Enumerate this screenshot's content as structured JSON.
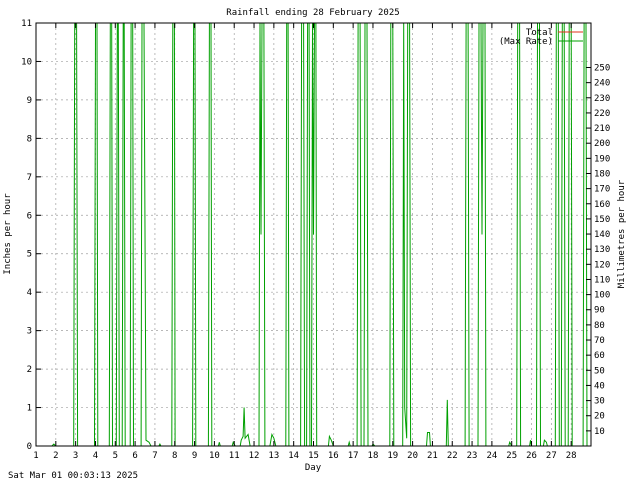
{
  "chart_data": {
    "type": "line",
    "title": "Rainfall ending 28 February 2025",
    "xlabel": "Day",
    "ylabel_left": "Inches per hour",
    "ylabel_right": "Millimetres per hour",
    "footer": "Sat Mar 01 00:03:13 2025",
    "xlim": [
      1,
      29
    ],
    "ylim_left": [
      0,
      11
    ],
    "ylim_right_mm": [
      0,
      279.4
    ],
    "x_ticks": [
      1,
      2,
      3,
      4,
      5,
      6,
      7,
      8,
      9,
      10,
      11,
      12,
      13,
      14,
      15,
      16,
      17,
      18,
      19,
      20,
      21,
      22,
      23,
      24,
      25,
      26,
      27,
      28
    ],
    "x_tick_labels": [
      "1",
      "2",
      "3",
      "4",
      "5",
      "6",
      "7",
      "8",
      "9",
      "10",
      "11",
      "12",
      "13",
      "14",
      "15",
      "16",
      "17",
      "18",
      "19",
      "20",
      "21",
      "22",
      "23",
      "24",
      "25",
      "26",
      "27",
      "28"
    ],
    "y_ticks_left": [
      0,
      1,
      2,
      3,
      4,
      5,
      6,
      7,
      8,
      9,
      10,
      11
    ],
    "y_tick_labels_left": [
      "0",
      "1",
      "2",
      "3",
      "4",
      "5",
      "6",
      "7",
      "8",
      "9",
      "10",
      "11"
    ],
    "y_ticks_right": [
      10,
      20,
      30,
      40,
      50,
      60,
      70,
      80,
      90,
      100,
      110,
      120,
      130,
      140,
      150,
      160,
      170,
      180,
      190,
      200,
      210,
      220,
      230,
      240,
      250
    ],
    "y_tick_labels_right": [
      "10",
      "20",
      "30",
      "40",
      "50",
      "60",
      "70",
      "80",
      "90",
      "100",
      "110",
      "120",
      "130",
      "140",
      "150",
      "160",
      "170",
      "180",
      "190",
      "200",
      "210",
      "220",
      "230",
      "240",
      "250"
    ],
    "grid": true,
    "legend_position": "top-right",
    "series": [
      {
        "name": "Total",
        "color": "#e0301e",
        "points": []
      },
      {
        "name": "(Max Rate)",
        "color": "#00a000",
        "points": [
          [
            1.0,
            0
          ],
          [
            1.8,
            0
          ],
          [
            1.9,
            0.05
          ],
          [
            2.0,
            0
          ],
          [
            2.9,
            0
          ],
          [
            2.95,
            11
          ],
          [
            3.05,
            11
          ],
          [
            3.1,
            0
          ],
          [
            3.95,
            0
          ],
          [
            4.0,
            11
          ],
          [
            4.08,
            11
          ],
          [
            4.12,
            0
          ],
          [
            4.7,
            0
          ],
          [
            4.75,
            11
          ],
          [
            4.82,
            11
          ],
          [
            4.86,
            0
          ],
          [
            5.05,
            0
          ],
          [
            5.1,
            11
          ],
          [
            5.15,
            11
          ],
          [
            5.2,
            0
          ],
          [
            5.35,
            0
          ],
          [
            5.4,
            11
          ],
          [
            5.45,
            11
          ],
          [
            5.5,
            0
          ],
          [
            5.75,
            0
          ],
          [
            5.8,
            11
          ],
          [
            5.88,
            11
          ],
          [
            5.92,
            0
          ],
          [
            6.3,
            0
          ],
          [
            6.35,
            11
          ],
          [
            6.45,
            11
          ],
          [
            6.55,
            0.15
          ],
          [
            6.7,
            0.1
          ],
          [
            6.8,
            0
          ],
          [
            7.2,
            0
          ],
          [
            7.25,
            0.05
          ],
          [
            7.3,
            0
          ],
          [
            7.85,
            0
          ],
          [
            7.9,
            11
          ],
          [
            7.98,
            11
          ],
          [
            8.02,
            0
          ],
          [
            8.9,
            0
          ],
          [
            8.95,
            11
          ],
          [
            9.02,
            11
          ],
          [
            9.06,
            0
          ],
          [
            9.7,
            0
          ],
          [
            9.75,
            11
          ],
          [
            9.83,
            11
          ],
          [
            9.87,
            0
          ],
          [
            10.2,
            0
          ],
          [
            10.25,
            0.1
          ],
          [
            10.3,
            0
          ],
          [
            10.9,
            0
          ],
          [
            10.95,
            0.1
          ],
          [
            11.05,
            0
          ],
          [
            11.3,
            0
          ],
          [
            11.35,
            0.15
          ],
          [
            11.45,
            0.25
          ],
          [
            11.5,
            1.0
          ],
          [
            11.55,
            0.2
          ],
          [
            11.7,
            0.3
          ],
          [
            11.8,
            0
          ],
          [
            12.25,
            0
          ],
          [
            12.3,
            11
          ],
          [
            12.35,
            5.5
          ],
          [
            12.4,
            11
          ],
          [
            12.5,
            11
          ],
          [
            12.55,
            0
          ],
          [
            12.8,
            0
          ],
          [
            12.9,
            0.3
          ],
          [
            13.0,
            0.2
          ],
          [
            13.1,
            0
          ],
          [
            13.6,
            0
          ],
          [
            13.65,
            11
          ],
          [
            13.72,
            11
          ],
          [
            13.76,
            0
          ],
          [
            14.35,
            0
          ],
          [
            14.4,
            11
          ],
          [
            14.5,
            11
          ],
          [
            14.55,
            0
          ],
          [
            14.65,
            0
          ],
          [
            14.7,
            11
          ],
          [
            14.78,
            11
          ],
          [
            14.82,
            0
          ],
          [
            14.9,
            0
          ],
          [
            14.95,
            11
          ],
          [
            15.0,
            5.5
          ],
          [
            15.05,
            11
          ],
          [
            15.12,
            11
          ],
          [
            15.16,
            0
          ],
          [
            15.75,
            0
          ],
          [
            15.8,
            0.25
          ],
          [
            15.9,
            0.15
          ],
          [
            16.0,
            0
          ],
          [
            16.75,
            0
          ],
          [
            16.8,
            0.1
          ],
          [
            16.85,
            0
          ],
          [
            17.2,
            0
          ],
          [
            17.25,
            11
          ],
          [
            17.35,
            11
          ],
          [
            17.4,
            0
          ],
          [
            17.55,
            0
          ],
          [
            17.6,
            11
          ],
          [
            17.7,
            11
          ],
          [
            17.75,
            0
          ],
          [
            17.95,
            0
          ],
          [
            18.0,
            0.05
          ],
          [
            18.1,
            0
          ],
          [
            18.85,
            0
          ],
          [
            18.9,
            11
          ],
          [
            19.0,
            11
          ],
          [
            19.05,
            0
          ],
          [
            19.5,
            0
          ],
          [
            19.55,
            11
          ],
          [
            19.6,
            1.0
          ],
          [
            19.7,
            0.2
          ],
          [
            19.75,
            11
          ],
          [
            19.85,
            11
          ],
          [
            19.9,
            0
          ],
          [
            20.7,
            0
          ],
          [
            20.75,
            0.35
          ],
          [
            20.85,
            0.35
          ],
          [
            20.9,
            0
          ],
          [
            21.7,
            0
          ],
          [
            21.75,
            1.2
          ],
          [
            21.8,
            0
          ],
          [
            22.65,
            0
          ],
          [
            22.7,
            11
          ],
          [
            22.8,
            11
          ],
          [
            22.85,
            0
          ],
          [
            23.3,
            0
          ],
          [
            23.35,
            11
          ],
          [
            23.45,
            11
          ],
          [
            23.5,
            5.5
          ],
          [
            23.55,
            11
          ],
          [
            23.65,
            11
          ],
          [
            23.7,
            0
          ],
          [
            24.85,
            0
          ],
          [
            24.9,
            0.1
          ],
          [
            25.0,
            0
          ],
          [
            25.25,
            0
          ],
          [
            25.3,
            11
          ],
          [
            25.4,
            11
          ],
          [
            25.45,
            0
          ],
          [
            25.9,
            0
          ],
          [
            25.95,
            0.15
          ],
          [
            26.0,
            0
          ],
          [
            26.25,
            0
          ],
          [
            26.3,
            11
          ],
          [
            26.4,
            11
          ],
          [
            26.45,
            0
          ],
          [
            26.6,
            0
          ],
          [
            26.65,
            0.15
          ],
          [
            26.75,
            0.1
          ],
          [
            26.8,
            0
          ],
          [
            27.2,
            0
          ],
          [
            27.25,
            11
          ],
          [
            27.35,
            11
          ],
          [
            27.4,
            0
          ],
          [
            27.5,
            0
          ],
          [
            27.55,
            11
          ],
          [
            27.65,
            11
          ],
          [
            27.7,
            0
          ],
          [
            27.85,
            0
          ],
          [
            27.9,
            11
          ],
          [
            28.0,
            11
          ],
          [
            28.05,
            0
          ],
          [
            28.6,
            0
          ],
          [
            28.65,
            11
          ],
          [
            28.75,
            11
          ],
          [
            28.8,
            0
          ],
          [
            29.0,
            0
          ]
        ]
      }
    ]
  }
}
